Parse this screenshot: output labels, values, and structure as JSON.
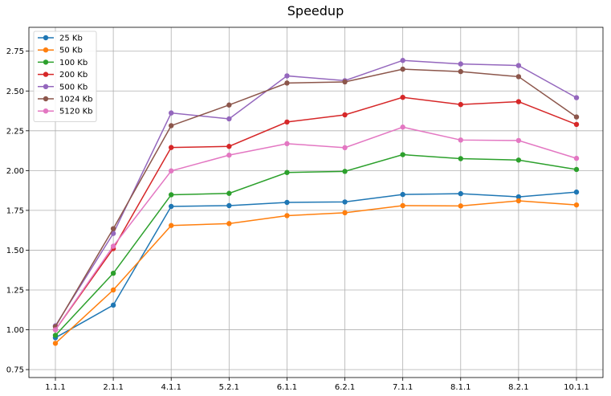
{
  "chart_data": {
    "type": "line",
    "title": "Speedup",
    "xlabel": "",
    "ylabel": "",
    "categories": [
      "1.1.1",
      "2.1.1",
      "4.1.1",
      "5.2.1",
      "6.1.1",
      "6.2.1",
      "7.1.1",
      "8.1.1",
      "8.2.1",
      "10.1.1"
    ],
    "ylim": [
      0.7,
      2.9
    ],
    "yticks": [
      "0.75",
      "1.00",
      "1.25",
      "1.50",
      "1.75",
      "2.00",
      "2.25",
      "2.50",
      "2.75"
    ],
    "grid": true,
    "legend_position": "top-left",
    "series": [
      {
        "name": "25 Kb",
        "color": "#1f77b4",
        "values": [
          0.95,
          1.155,
          1.775,
          1.78,
          1.8,
          1.803,
          1.85,
          1.855,
          1.835,
          1.865
        ]
      },
      {
        "name": "50 Kb",
        "color": "#ff7f0e",
        "values": [
          0.915,
          1.25,
          1.655,
          1.667,
          1.717,
          1.735,
          1.78,
          1.778,
          1.81,
          1.784
        ]
      },
      {
        "name": "100 Kb",
        "color": "#2ca02c",
        "values": [
          0.965,
          1.355,
          1.848,
          1.857,
          1.988,
          1.995,
          2.1,
          2.075,
          2.066,
          2.007
        ]
      },
      {
        "name": "200 Kb",
        "color": "#d62728",
        "values": [
          1.0,
          1.51,
          2.145,
          2.152,
          2.305,
          2.35,
          2.46,
          2.415,
          2.433,
          2.29
        ]
      },
      {
        "name": "500 Kb",
        "color": "#9467bd",
        "values": [
          1.025,
          1.605,
          2.362,
          2.325,
          2.595,
          2.565,
          2.692,
          2.67,
          2.66,
          2.458
        ]
      },
      {
        "name": "1024 Kb",
        "color": "#8c564b",
        "values": [
          1.02,
          1.635,
          2.282,
          2.412,
          2.55,
          2.557,
          2.637,
          2.622,
          2.59,
          2.337
        ]
      },
      {
        "name": "5120 Kb",
        "color": "#e377c2",
        "values": [
          1.0,
          1.525,
          1.998,
          2.097,
          2.169,
          2.144,
          2.273,
          2.192,
          2.189,
          2.077
        ]
      }
    ]
  }
}
